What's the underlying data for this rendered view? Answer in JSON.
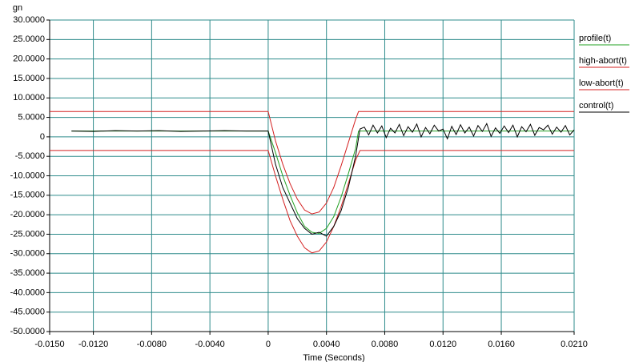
{
  "chart_data": {
    "type": "line",
    "y_label": "gn",
    "x_label": "Time (Seconds)",
    "xlim": [
      -0.015,
      0.021
    ],
    "ylim": [
      -50,
      30
    ],
    "grid": true,
    "legend": "right",
    "xticks": [
      {
        "value": -0.015,
        "label": "-0.0150"
      },
      {
        "value": -0.012,
        "label": "-0.0120"
      },
      {
        "value": -0.008,
        "label": "-0.0080"
      },
      {
        "value": -0.004,
        "label": "-0.0040"
      },
      0,
      {
        "value": 0.004,
        "label": "0.0040"
      },
      {
        "value": 0.008,
        "label": "0.0080"
      },
      {
        "value": 0.012,
        "label": "0.0120"
      },
      {
        "value": 0.016,
        "label": "0.0160"
      },
      {
        "value": 0.021,
        "label": "0.0210"
      }
    ],
    "yticks": [
      {
        "value": 30,
        "label": "30.0000"
      },
      {
        "value": 25,
        "label": "25.0000"
      },
      {
        "value": 20,
        "label": "20.0000"
      },
      {
        "value": 15,
        "label": "15.0000"
      },
      {
        "value": 10,
        "label": "10.0000"
      },
      {
        "value": 5,
        "label": "5.0000"
      },
      0,
      {
        "value": -5,
        "label": "-5.0000"
      },
      {
        "value": -10,
        "label": "-10.0000"
      },
      {
        "value": -15,
        "label": "-15.0000"
      },
      {
        "value": -20,
        "label": "-20.0000"
      },
      {
        "value": -25,
        "label": "-25.0000"
      },
      {
        "value": -30,
        "label": "-30.0000"
      },
      {
        "value": -35,
        "label": "-35.0000"
      },
      {
        "value": -40,
        "label": "-40.0000"
      },
      {
        "value": -45,
        "label": "-45.0000"
      },
      {
        "value": -50,
        "label": "-50.0000"
      }
    ],
    "series": [
      {
        "name": "profile(t)",
        "color": "#22a022",
        "x": [
          -0.0135,
          0,
          0.0005,
          0.001,
          0.0015,
          0.002,
          0.0025,
          0.003,
          0.0035,
          0.004,
          0.0045,
          0.005,
          0.0055,
          0.006,
          0.0062,
          0.021
        ],
        "values": [
          1.5,
          1.5,
          -4,
          -10,
          -15,
          -19.5,
          -23,
          -24.5,
          -24.8,
          -23.5,
          -20.5,
          -15.5,
          -9.5,
          -3,
          1.5,
          1.5
        ]
      },
      {
        "name": "high-abort(t)",
        "color": "#d42020",
        "x": [
          -0.015,
          0,
          0.0005,
          0.001,
          0.0015,
          0.002,
          0.0025,
          0.003,
          0.0035,
          0.004,
          0.0045,
          0.005,
          0.0055,
          0.006,
          0.0062,
          0.021
        ],
        "values": [
          6.5,
          6.5,
          -1,
          -7,
          -12,
          -16,
          -18.8,
          -19.8,
          -19.3,
          -17,
          -13,
          -7.5,
          -1.5,
          4.5,
          6.5,
          6.5
        ]
      },
      {
        "name": "low-abort(t)",
        "color": "#d42020",
        "x": [
          -0.015,
          0,
          0.0005,
          0.001,
          0.0015,
          0.002,
          0.0025,
          0.003,
          0.0035,
          0.004,
          0.0045,
          0.005,
          0.0055,
          0.006,
          0.0063,
          0.021
        ],
        "values": [
          -3.5,
          -3.5,
          -10,
          -16,
          -21.5,
          -25.5,
          -28.5,
          -29.8,
          -29.3,
          -27,
          -23,
          -18,
          -12,
          -6,
          -3.5,
          -3.5
        ]
      },
      {
        "name": "control(t)",
        "color": "#000000",
        "x": [
          -0.0135,
          -0.012,
          -0.0105,
          -0.009,
          -0.0075,
          -0.006,
          -0.0045,
          -0.003,
          -0.0015,
          0,
          0.0005,
          0.001,
          0.0015,
          0.002,
          0.0025,
          0.003,
          0.0035,
          0.004,
          0.0045,
          0.005,
          0.0055,
          0.006,
          0.0063,
          0.0066,
          0.0069,
          0.0072,
          0.0075,
          0.0078,
          0.0081,
          0.0084,
          0.0087,
          0.009,
          0.0093,
          0.0096,
          0.0099,
          0.0102,
          0.0105,
          0.0108,
          0.0111,
          0.0114,
          0.0117,
          0.012,
          0.0123,
          0.0126,
          0.0129,
          0.0132,
          0.0135,
          0.0138,
          0.0141,
          0.0144,
          0.0147,
          0.015,
          0.0153,
          0.0156,
          0.0159,
          0.0162,
          0.0165,
          0.0168,
          0.0171,
          0.0174,
          0.0177,
          0.018,
          0.0183,
          0.0186,
          0.0189,
          0.0192,
          0.0195,
          0.0198,
          0.0201,
          0.0204,
          0.0207,
          0.021
        ],
        "values": [
          1.5,
          1.4,
          1.6,
          1.5,
          1.6,
          1.4,
          1.5,
          1.6,
          1.5,
          1.5,
          -7,
          -13,
          -17,
          -21,
          -23.5,
          -25,
          -24.5,
          -25.5,
          -23,
          -19,
          -13,
          -5,
          2,
          2.5,
          0.5,
          3,
          1,
          2.8,
          -0.2,
          2.2,
          1,
          3.2,
          0.3,
          2.6,
          1.2,
          3.3,
          0,
          2.4,
          0.8,
          3,
          1.5,
          2,
          -0.5,
          2.7,
          0.6,
          3.1,
          1,
          2.5,
          0.2,
          2.9,
          1.4,
          3.4,
          0.1,
          2.3,
          0.9,
          2.8,
          1.1,
          3,
          0,
          2.6,
          1.3,
          3.2,
          0.4,
          2.4,
          1.8,
          3,
          0.7,
          2.5,
          1.2,
          2.9,
          0.5,
          1.8
        ]
      }
    ]
  }
}
